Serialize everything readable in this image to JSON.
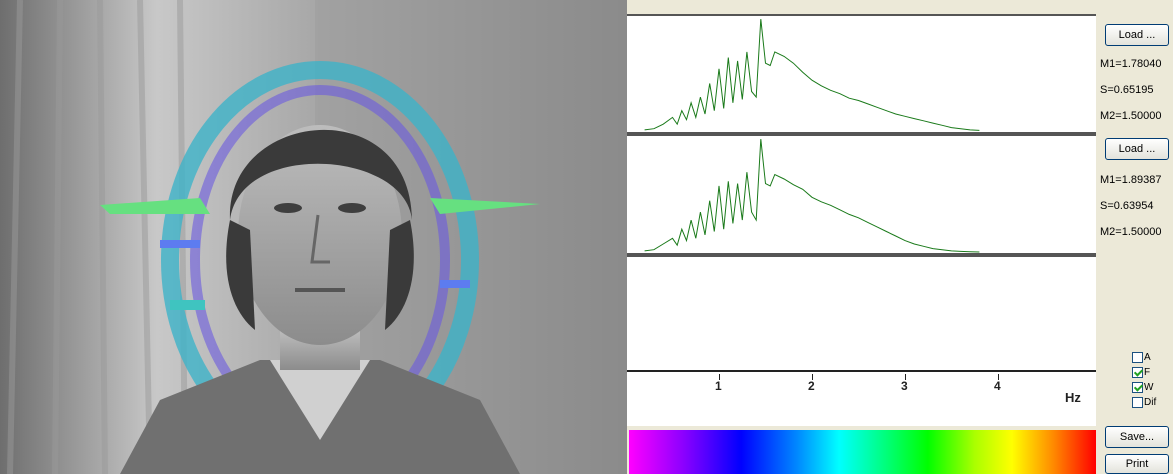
{
  "colors": {
    "window_bg": "#ece9d8",
    "plot_line": "#1a7a1a",
    "button_border": "#003c74",
    "checkmark": "#21a121"
  },
  "photo": {
    "icon": "person-portrait-with-aura-overlay"
  },
  "panels": [
    {
      "id": "top",
      "icon": "spectrum-line-plot"
    },
    {
      "id": "middle",
      "icon": "spectrum-line-plot"
    },
    {
      "id": "bottom",
      "icon": "empty-plot"
    }
  ],
  "axis": {
    "ticks": [
      "1",
      "2",
      "3",
      "4"
    ],
    "unit": "Hz"
  },
  "chart_data": [
    {
      "type": "line",
      "title": "",
      "xlabel": "Hz",
      "ylabel": "",
      "xlim": [
        0.15,
        5.0
      ],
      "ylim": [
        0,
        1.0
      ],
      "x": [
        0.2,
        0.3,
        0.4,
        0.5,
        0.55,
        0.6,
        0.65,
        0.7,
        0.75,
        0.8,
        0.85,
        0.9,
        0.95,
        1.0,
        1.05,
        1.1,
        1.15,
        1.2,
        1.25,
        1.3,
        1.35,
        1.4,
        1.45,
        1.5,
        1.55,
        1.6,
        1.7,
        1.8,
        1.9,
        2.0,
        2.1,
        2.2,
        2.3,
        2.4,
        2.5,
        2.6,
        2.7,
        2.8,
        2.9,
        3.0,
        3.1,
        3.2,
        3.3,
        3.4,
        3.5,
        3.6,
        3.7,
        3.8
      ],
      "series": [
        {
          "values": [
            0.01,
            0.02,
            0.06,
            0.12,
            0.06,
            0.18,
            0.1,
            0.25,
            0.12,
            0.3,
            0.15,
            0.42,
            0.18,
            0.55,
            0.2,
            0.65,
            0.25,
            0.62,
            0.28,
            0.7,
            0.35,
            0.3,
            0.99,
            0.6,
            0.58,
            0.7,
            0.66,
            0.6,
            0.52,
            0.45,
            0.4,
            0.36,
            0.33,
            0.29,
            0.27,
            0.24,
            0.21,
            0.18,
            0.15,
            0.13,
            0.11,
            0.09,
            0.07,
            0.05,
            0.03,
            0.02,
            0.01,
            0.005
          ]
        }
      ]
    },
    {
      "type": "line",
      "title": "",
      "xlabel": "Hz",
      "ylabel": "",
      "xlim": [
        0.15,
        5.0
      ],
      "ylim": [
        0,
        1.0
      ],
      "x": [
        0.2,
        0.3,
        0.4,
        0.5,
        0.55,
        0.6,
        0.65,
        0.7,
        0.75,
        0.8,
        0.85,
        0.9,
        0.95,
        1.0,
        1.05,
        1.1,
        1.15,
        1.2,
        1.25,
        1.3,
        1.35,
        1.4,
        1.45,
        1.5,
        1.55,
        1.6,
        1.7,
        1.8,
        1.9,
        2.0,
        2.1,
        2.2,
        2.3,
        2.4,
        2.5,
        2.6,
        2.7,
        2.8,
        2.9,
        3.0,
        3.1,
        3.2,
        3.3,
        3.4,
        3.5,
        3.6,
        3.7,
        3.8
      ],
      "series": [
        {
          "values": [
            0.01,
            0.02,
            0.07,
            0.12,
            0.06,
            0.2,
            0.1,
            0.28,
            0.12,
            0.35,
            0.15,
            0.45,
            0.18,
            0.58,
            0.2,
            0.62,
            0.25,
            0.6,
            0.28,
            0.7,
            0.35,
            0.28,
            0.99,
            0.6,
            0.58,
            0.68,
            0.64,
            0.59,
            0.55,
            0.48,
            0.44,
            0.41,
            0.37,
            0.33,
            0.3,
            0.26,
            0.22,
            0.18,
            0.14,
            0.1,
            0.07,
            0.05,
            0.03,
            0.02,
            0.01,
            0.005,
            0.002,
            0.0
          ]
        }
      ]
    }
  ],
  "sidebar": {
    "load1": "Load ...",
    "m1_1": "M1=1.78040",
    "s_1": "S=0.65195",
    "m2_1": "M2=1.50000",
    "load2": "Load ...",
    "m1_2": "M1=1.89387",
    "s_2": "S=0.63954",
    "m2_2": "M2=1.50000",
    "checkboxes": [
      {
        "label": "A",
        "checked": false
      },
      {
        "label": "F",
        "checked": true
      },
      {
        "label": "W",
        "checked": true
      },
      {
        "label": "Dif",
        "checked": false
      }
    ],
    "save": "Save...",
    "print": "Print"
  }
}
